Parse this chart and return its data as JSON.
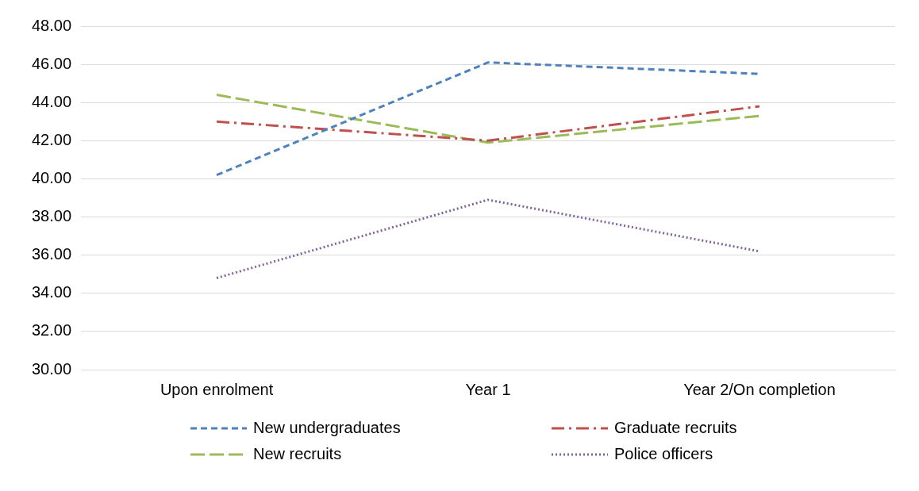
{
  "chart_data": {
    "type": "line",
    "categories": [
      "Upon enrolment",
      "Year 1",
      "Year 2/On completion"
    ],
    "series": [
      {
        "name": "New undergraduates",
        "color": "#4f81bd",
        "values": [
          40.2,
          46.1,
          45.5
        ],
        "line_style": "dashed"
      },
      {
        "name": "Graduate recruits",
        "color": "#c0504d",
        "values": [
          43.0,
          42.0,
          43.8
        ],
        "line_style": "dashed"
      },
      {
        "name": "New recruits",
        "color": "#9bbb59",
        "values": [
          44.4,
          41.9,
          43.3
        ],
        "line_style": "dashed"
      },
      {
        "name": "Police officers",
        "color": "#8064a2",
        "values": [
          34.8,
          38.9,
          36.2
        ],
        "line_style": "dotted"
      }
    ],
    "ylim": [
      30,
      48
    ],
    "yticks": [
      {
        "value": 30,
        "label": "30.00"
      },
      {
        "value": 32,
        "label": "32.00"
      },
      {
        "value": 34,
        "label": "34.00"
      },
      {
        "value": 36,
        "label": "36.00"
      },
      {
        "value": 38,
        "label": "38.00"
      },
      {
        "value": 40,
        "label": "40.00"
      },
      {
        "value": 42,
        "label": "42.00"
      },
      {
        "value": 44,
        "label": "44.00"
      },
      {
        "value": 46,
        "label": "46.00"
      },
      {
        "value": 48,
        "label": "48.00"
      }
    ],
    "grid": "y",
    "legend": "bottom",
    "marker": "none"
  }
}
